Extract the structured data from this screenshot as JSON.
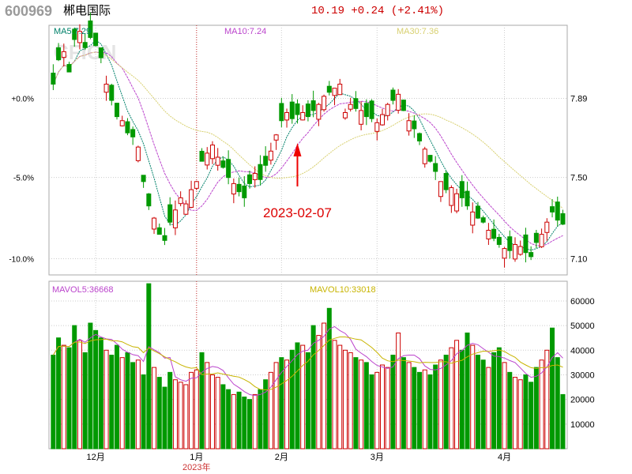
{
  "header": {
    "code": "600969",
    "name": "郴电国际",
    "quote": "10.19 +0.24 (+2.41%)"
  },
  "watermark": "CFICN",
  "colors": {
    "up": "#cc0000",
    "down": "#009900",
    "ma5": "#00806a",
    "ma10": "#bb44cc",
    "ma30": "#d8d070",
    "mavol5": "#bb44cc",
    "mavol10": "#c8b400",
    "frame": "#aaaaaa",
    "grid": "#cccccc",
    "date_line": "#cc3333"
  },
  "chart_data": [
    {
      "type": "candlestick",
      "legend": [
        "MA5:7.29",
        "MA10:7.24",
        "MA30:7.36"
      ],
      "y_price_ticks": [
        "7.89",
        "7.50",
        "7.10"
      ],
      "y_pct_ticks": [
        "+0.0%",
        "-5.0%",
        "-10.0%"
      ],
      "price_range": [
        7.02,
        8.25
      ],
      "months": [
        {
          "label": "12月",
          "index": 8
        },
        {
          "label": "1月",
          "index": 27
        },
        {
          "label": "2月",
          "index": 43
        },
        {
          "label": "3月",
          "index": 61
        },
        {
          "label": "4月",
          "index": 85
        }
      ],
      "year_label": "2023年",
      "year_line_index": 27,
      "annotation": {
        "text": "2023-02-07",
        "index": 46
      },
      "closes": [
        7.96,
        8.08,
        8.12,
        8.02,
        8.18,
        8.22,
        8.14,
        8.19,
        8.15,
        8.09,
        7.96,
        7.88,
        7.8,
        7.78,
        7.72,
        7.7,
        7.65,
        7.48,
        7.36,
        7.3,
        7.22,
        7.19,
        7.28,
        7.34,
        7.4,
        7.37,
        7.44,
        7.48,
        7.58,
        7.62,
        7.66,
        7.6,
        7.55,
        7.5,
        7.47,
        7.43,
        7.4,
        7.47,
        7.52,
        7.49,
        7.56,
        7.63,
        7.71,
        7.78,
        7.82,
        7.79,
        7.81,
        7.82,
        7.8,
        7.83,
        7.86,
        7.9,
        7.92,
        7.94,
        7.96,
        7.82,
        7.86,
        7.84,
        7.83,
        7.8,
        7.79,
        7.77,
        7.81,
        7.86,
        7.88,
        7.91,
        7.83,
        7.78,
        7.74,
        7.68,
        7.64,
        7.58,
        7.53,
        7.48,
        7.44,
        7.45,
        7.42,
        7.4,
        7.36,
        7.33,
        7.3,
        7.28,
        7.24,
        7.2,
        7.17,
        7.15,
        7.14,
        7.17,
        7.16,
        7.13,
        7.11,
        7.18,
        7.22,
        7.28,
        7.33,
        7.29,
        7.27
      ],
      "vol_ticks": [
        "60000",
        "50000",
        "40000",
        "30000",
        "20000",
        "10000"
      ],
      "vol_range": [
        0,
        68000
      ],
      "vol_legend": [
        "MAVOL5:36668",
        "MAVOL10:33018"
      ],
      "volumes": [
        38000,
        45000,
        42000,
        41000,
        50000,
        44000,
        39000,
        51000,
        48000,
        45000,
        40000,
        38000,
        42000,
        37000,
        39000,
        35000,
        36000,
        30000,
        67000,
        33000,
        29000,
        25000,
        31000,
        28000,
        27000,
        26000,
        31000,
        32000,
        39000,
        35000,
        30000,
        29000,
        26000,
        24000,
        22000,
        23000,
        21000,
        20000,
        22000,
        24000,
        28000,
        31000,
        35000,
        37000,
        36000,
        40000,
        43000,
        42000,
        39000,
        50000,
        46000,
        51000,
        57000,
        44000,
        42000,
        40000,
        39000,
        37000,
        36000,
        35000,
        30000,
        31000,
        34000,
        33000,
        38000,
        47000,
        37000,
        35000,
        33000,
        31000,
        32000,
        30000,
        34000,
        36000,
        38000,
        41000,
        44000,
        40000,
        47000,
        42000,
        38000,
        36000,
        33000,
        39000,
        41000,
        35000,
        31000,
        29000,
        28000,
        30000,
        27000,
        33000,
        36000,
        40000,
        49000,
        37000,
        22000
      ]
    }
  ]
}
